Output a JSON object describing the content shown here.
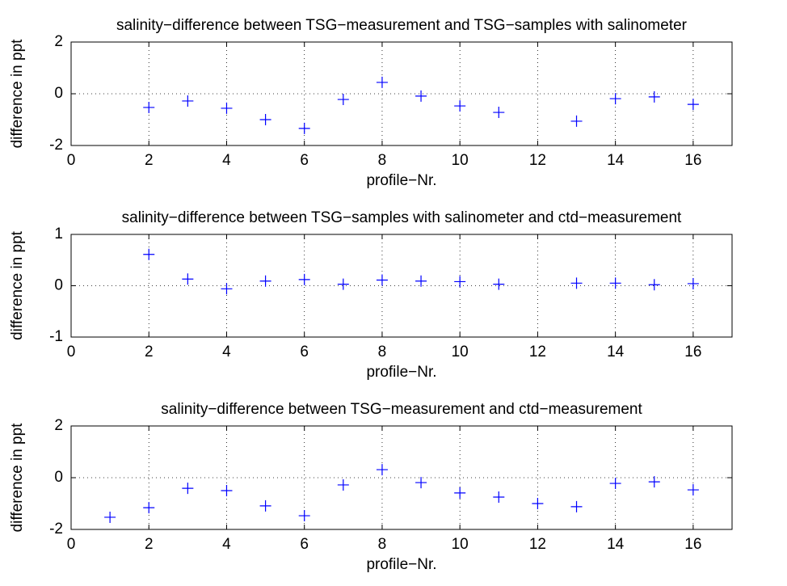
{
  "chart_data": [
    {
      "type": "scatter",
      "title": "salinity−difference between TSG−measurement and TSG−samples with salinometer",
      "x_label": "profile−Nr.",
      "y_label": "difference in ppt",
      "color": "#0000ff",
      "grid": true,
      "x": [
        2,
        3,
        4,
        5,
        6,
        7,
        8,
        9,
        10,
        11,
        13,
        14,
        15,
        16
      ],
      "values": [
        -0.53,
        -0.28,
        -0.56,
        -1.0,
        -1.34,
        -0.22,
        0.44,
        -0.09,
        -0.47,
        -0.72,
        -1.06,
        -0.19,
        -0.12,
        -0.41
      ],
      "xlim": [
        0,
        17
      ],
      "xticks": [
        0,
        2,
        4,
        6,
        8,
        10,
        12,
        14,
        16
      ],
      "ylim": [
        -2,
        2
      ],
      "yticks": [
        -2,
        0,
        2
      ]
    },
    {
      "type": "scatter",
      "title": "salinity−difference between TSG−samples with salinometer and ctd−measurement",
      "x_label": "profile−Nr.",
      "y_label": "difference in ppt",
      "color": "#0000ff",
      "grid": true,
      "x": [
        2,
        3,
        4,
        5,
        6,
        7,
        8,
        9,
        10,
        11,
        13,
        14,
        15,
        16
      ],
      "values": [
        0.61,
        0.13,
        -0.06,
        0.09,
        0.12,
        0.03,
        0.11,
        0.09,
        0.08,
        0.03,
        0.05,
        0.05,
        0.02,
        0.04
      ],
      "xlim": [
        0,
        17
      ],
      "xticks": [
        0,
        2,
        4,
        6,
        8,
        10,
        12,
        14,
        16
      ],
      "ylim": [
        -1,
        1
      ],
      "yticks": [
        -1,
        0,
        1
      ]
    },
    {
      "type": "scatter",
      "title": "salinity−difference between TSG−measurement and ctd−measurement",
      "x_label": "profile−Nr.",
      "y_label": "difference in ppt",
      "color": "#0000ff",
      "grid": true,
      "x": [
        1,
        2,
        3,
        4,
        5,
        6,
        7,
        8,
        9,
        10,
        11,
        12,
        13,
        14,
        15,
        16
      ],
      "values": [
        -1.53,
        -1.16,
        -0.41,
        -0.5,
        -1.09,
        -1.47,
        -0.28,
        0.31,
        -0.19,
        -0.59,
        -0.75,
        -1.0,
        -1.12,
        -0.22,
        -0.16,
        -0.47
      ],
      "xlim": [
        0,
        17
      ],
      "xticks": [
        0,
        2,
        4,
        6,
        8,
        10,
        12,
        14,
        16
      ],
      "ylim": [
        -2,
        2
      ],
      "yticks": [
        -2,
        0,
        2
      ]
    }
  ]
}
